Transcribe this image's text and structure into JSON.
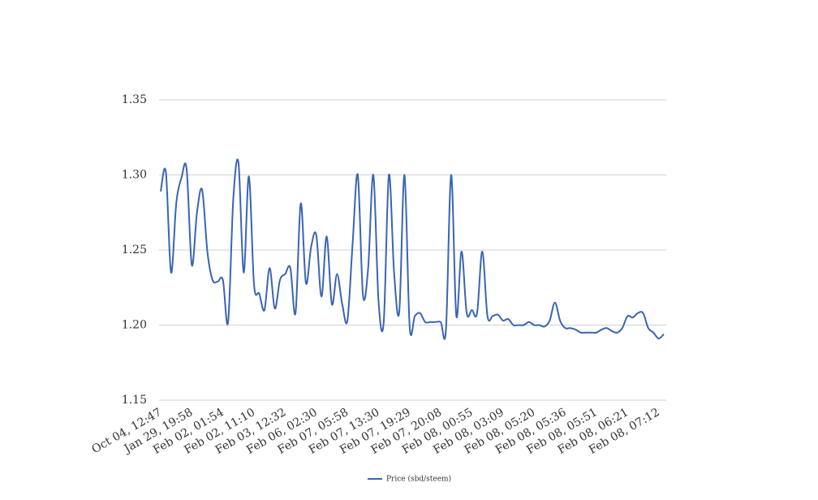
{
  "chart_data": {
    "type": "line",
    "categories": [
      "Oct 04, 12:47",
      null,
      null,
      null,
      null,
      null,
      "Jan 29, 19:58",
      null,
      null,
      null,
      null,
      null,
      "Feb 02, 01:54",
      null,
      null,
      null,
      null,
      null,
      "Feb 02, 11:10",
      null,
      null,
      null,
      null,
      null,
      "Feb 03, 12:32",
      null,
      null,
      null,
      null,
      null,
      "Feb 06, 02:30",
      null,
      null,
      null,
      null,
      null,
      "Feb 07, 05:58",
      null,
      null,
      null,
      null,
      null,
      "Feb 07, 13:30",
      null,
      null,
      null,
      null,
      null,
      "Feb 07, 19:29",
      null,
      null,
      null,
      null,
      null,
      "Feb 07, 20:08",
      null,
      null,
      null,
      null,
      null,
      "Feb 08, 00:55",
      null,
      null,
      null,
      null,
      null,
      "Feb 08, 03:09",
      null,
      null,
      null,
      null,
      null,
      "Feb 08, 05:20",
      null,
      null,
      null,
      null,
      null,
      "Feb 08, 05:36",
      null,
      null,
      null,
      null,
      null,
      "Feb 08, 05:51",
      null,
      null,
      null,
      null,
      null,
      "Feb 08, 06:21",
      null,
      null,
      null,
      null,
      null,
      "Feb 08, 07:12",
      null
    ],
    "series": [
      {
        "name": "Price (sbd/steem)",
        "color": "#3a64b4",
        "values": [
          1.289,
          1.302,
          1.235,
          1.281,
          1.298,
          1.304,
          1.24,
          1.275,
          1.29,
          1.249,
          1.23,
          1.229,
          1.23,
          1.202,
          1.284,
          1.308,
          1.235,
          1.299,
          1.227,
          1.221,
          1.21,
          1.238,
          1.211,
          1.23,
          1.234,
          1.238,
          1.208,
          1.281,
          1.228,
          1.252,
          1.26,
          1.219,
          1.259,
          1.214,
          1.234,
          1.214,
          1.203,
          1.254,
          1.3,
          1.22,
          1.238,
          1.3,
          1.216,
          1.202,
          1.3,
          1.235,
          1.209,
          1.3,
          1.199,
          1.206,
          1.208,
          1.202,
          1.202,
          1.202,
          1.202,
          1.197,
          1.3,
          1.206,
          1.249,
          1.208,
          1.21,
          1.208,
          1.249,
          1.206,
          1.206,
          1.207,
          1.203,
          1.204,
          1.2,
          1.2,
          1.2,
          1.202,
          1.2,
          1.2,
          1.199,
          1.203,
          1.215,
          1.203,
          1.198,
          1.198,
          1.197,
          1.195,
          1.195,
          1.195,
          1.195,
          1.197,
          1.198,
          1.196,
          1.195,
          1.198,
          1.206,
          1.205,
          1.208,
          1.208,
          1.198,
          1.195,
          1.191,
          1.194
        ]
      }
    ],
    "ylim": [
      1.15,
      1.35
    ],
    "yticks": [
      1.15,
      {
        "value": 1.2,
        "label": "1.20"
      },
      1.25,
      {
        "value": 1.3,
        "label": "1.30"
      },
      1.35
    ],
    "grid": true,
    "legend": "bottom"
  }
}
